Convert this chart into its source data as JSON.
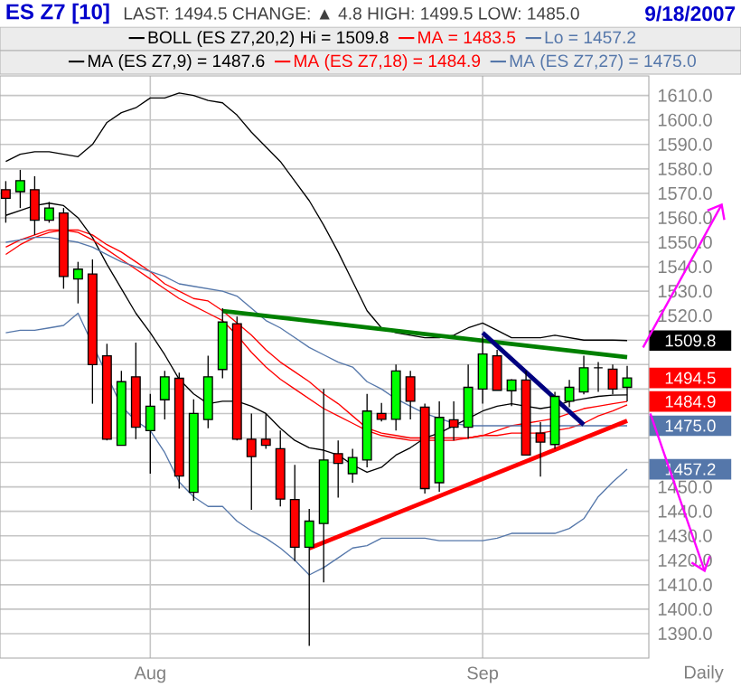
{
  "chart_data": {
    "type": "candlestick",
    "title": "ES Z7 [10]",
    "subtitle": "LAST: 1494.5 CHANGE: ▲ 4.8 HIGH: 1499.5 LOW: 1485.0",
    "annotations": [
      "9/18/2007",
      "Daily",
      "1494.5",
      "1509.8",
      "1484.9",
      "1475.0",
      "1457.2"
    ],
    "categories": [
      null,
      null,
      null,
      null,
      null,
      null,
      null,
      null,
      null,
      null,
      "Aug",
      null,
      null,
      null,
      null,
      null,
      null,
      null,
      null,
      null,
      null,
      null,
      null,
      null,
      null,
      null,
      null,
      null,
      null,
      null,
      null,
      null,
      null,
      "Sep",
      null,
      null,
      null,
      null,
      null,
      null,
      null,
      null,
      null,
      null
    ],
    "ohlc": [
      [
        1571.5,
        1575,
        1558,
        1568
      ],
      [
        1570.7,
        1579.6,
        1564,
        1575.2
      ],
      [
        1571.5,
        1577,
        1553,
        1559
      ],
      [
        1559,
        1566.5,
        1558,
        1564
      ],
      [
        1562,
        1564,
        1531,
        1536
      ],
      [
        1535,
        1542,
        1525,
        1539
      ],
      [
        1537,
        1543,
        1484,
        1500
      ],
      [
        1503.6,
        1508.5,
        1469,
        1469.5
      ],
      [
        1467,
        1497.4,
        1467,
        1493
      ],
      [
        1495,
        1509,
        1469.5,
        1474.4
      ],
      [
        1473,
        1488,
        1455.4,
        1483
      ],
      [
        1485.6,
        1497.4,
        1477.6,
        1495
      ],
      [
        1494.4,
        1496.7,
        1449.3,
        1454.4
      ],
      [
        1447.8,
        1485.8,
        1444.3,
        1480
      ],
      [
        1477.5,
        1503.6,
        1474,
        1495
      ],
      [
        1498,
        1523,
        1494.4,
        1517.4
      ],
      [
        1516.7,
        1519.6,
        1469,
        1469.5
      ],
      [
        1469.5,
        1480,
        1440.6,
        1462.4
      ],
      [
        1469.5,
        1480,
        1465.6,
        1467
      ],
      [
        1465.6,
        1473,
        1442,
        1445
      ],
      [
        1444.8,
        1459,
        1419.6,
        1425.3
      ],
      [
        1425.3,
        1441,
        1385,
        1436
      ],
      [
        1435,
        1490,
        1411,
        1461
      ],
      [
        1463.6,
        1469,
        1445.6,
        1459.6
      ],
      [
        1455.4,
        1465.6,
        1451.7,
        1462
      ],
      [
        1461,
        1488,
        1458,
        1481
      ],
      [
        1480,
        1484.3,
        1476.7,
        1477.6
      ],
      [
        1477.6,
        1500,
        1473,
        1497.4
      ],
      [
        1495,
        1497.4,
        1477.6,
        1485
      ],
      [
        1482.6,
        1484,
        1447.3,
        1449.3
      ],
      [
        1451.7,
        1485,
        1448,
        1478.4
      ],
      [
        1477.4,
        1485,
        1469,
        1474.4
      ],
      [
        1474.4,
        1500,
        1469.7,
        1490.7
      ],
      [
        1490,
        1511.5,
        1484,
        1504.3
      ],
      [
        1503.6,
        1506,
        1489.5,
        1489.5
      ],
      [
        1489.3,
        1494,
        1483,
        1493.7
      ],
      [
        1493.7,
        1497.4,
        1463,
        1463
      ],
      [
        1472,
        1476.5,
        1454.2,
        1468.3
      ],
      [
        1467.3,
        1488.8,
        1465.6,
        1487
      ],
      [
        1485,
        1493.7,
        1482.6,
        1490.7
      ],
      [
        1488.8,
        1503.6,
        1487.8,
        1498.7
      ],
      [
        1498.7,
        1501,
        1488.8,
        1498.7
      ],
      [
        1498.1,
        1500,
        1487.8,
        1490
      ],
      [
        1490.7,
        1499.5,
        1485,
        1494.5
      ]
    ],
    "colors": [
      "#ff0000",
      "#00ff00",
      "#ff0000",
      "#00ff00",
      "#ff0000",
      "#00ff00",
      "#ff0000",
      "#ff0000",
      "#00ff00",
      "#ff0000",
      "#00ff00",
      "#00ff00",
      "#ff0000",
      "#00ff00",
      "#00ff00",
      "#00ff00",
      "#ff0000",
      "#ff0000",
      "#ff0000",
      "#ff0000",
      "#ff0000",
      "#00ff00",
      "#00ff00",
      "#ff0000",
      "#00ff00",
      "#00ff00",
      "#ff0000",
      "#00ff00",
      "#ff0000",
      "#ff0000",
      "#00ff00",
      "#ff0000",
      "#00ff00",
      "#00ff00",
      "#ff0000",
      "#00ff00",
      "#ff0000",
      "#ff0000",
      "#00ff00",
      "#00ff00",
      "#00ff00",
      "#000000",
      "#ff0000",
      "#00ff00"
    ],
    "series": [
      {
        "type": "line",
        "name": "BOLL (ES Z7,20,2) Hi = 1509.8",
        "color": "#000000",
        "values": [
          1583,
          1586,
          1587,
          1587,
          1586,
          1585,
          1590,
          1599,
          1603,
          1605,
          1609,
          1609,
          1611,
          1610,
          1608,
          1607,
          1602,
          1595,
          1589,
          1583,
          1575,
          1567,
          1557,
          1546,
          1534,
          1522,
          1515,
          1513,
          1512,
          1511,
          1511,
          1512,
          1515,
          1517,
          1514,
          1511,
          1511,
          1511,
          1512,
          1511,
          1510,
          1510,
          1510,
          1509.8
        ]
      },
      {
        "type": "line",
        "name": "MA = 1483.5",
        "color": "#ff0000",
        "values": [
          1548,
          1551,
          1553,
          1555,
          1555,
          1555,
          1553,
          1549,
          1546,
          1542,
          1538,
          1533,
          1530,
          1527,
          1526,
          1522,
          1517,
          1512,
          1506,
          1501,
          1497,
          1493,
          1488,
          1484,
          1479,
          1474,
          1472,
          1471,
          1470,
          1470,
          1470,
          1470,
          1470,
          1471,
          1471,
          1472,
          1472,
          1472,
          1473,
          1474,
          1476,
          1479,
          1481,
          1483.5
        ]
      },
      {
        "type": "line",
        "name": "Lo = 1457.2",
        "color": "#5577aa",
        "values": [
          1513,
          1514,
          1514,
          1515,
          1516,
          1521,
          null,
          null,
          1483,
          1477,
          1473,
          1464,
          1452,
          1446,
          1442,
          1442,
          1436,
          1432,
          1429,
          1425,
          1420,
          1414,
          1417,
          1421,
          1425,
          1426,
          1429,
          1429,
          1429,
          1429,
          1428,
          1428,
          1428,
          1428,
          1429,
          1431,
          1431,
          1431,
          1431,
          1433,
          1437,
          1446,
          1452,
          1457.2
        ]
      },
      {
        "type": "line",
        "name": "MA (ES Z7,9) = 1487.6",
        "color": "#000000",
        "values": [
          1561,
          1563,
          1565,
          1566,
          1565,
          1560,
          1552,
          1541,
          1531,
          1521,
          1513,
          1504,
          1494,
          1488,
          1484,
          1485,
          1485,
          1483,
          1480,
          1474,
          1469,
          1466,
          1465,
          1463,
          1459,
          1456,
          1458,
          1463,
          1466,
          1470,
          1472,
          1475,
          1478,
          1481,
          1483,
          1484,
          1483,
          1482,
          1483,
          1485,
          1486,
          1487,
          1487.5,
          1487.6
        ]
      },
      {
        "type": "line",
        "name": "MA (ES Z7,18) = 1484.9",
        "color": "#ff0000",
        "values": [
          1545,
          1549,
          1552,
          1554,
          1555,
          1554,
          1551,
          1547,
          1543,
          1539,
          1535,
          1531,
          1527,
          1524,
          1521,
          1518,
          1512,
          1505,
          1499,
          1494,
          1490,
          1486,
          1482,
          1479,
          1476,
          1473,
          1471,
          1470,
          1469,
          1469,
          1469,
          1469,
          1470,
          1471,
          1473,
          1475,
          1476,
          1477,
          1478,
          1480,
          1482,
          1483,
          1484,
          1484.9
        ]
      },
      {
        "type": "line",
        "name": "MA (ES Z7,27) = 1475.0",
        "color": "#5577aa",
        "values": [
          1550,
          1551,
          1552,
          1552,
          1551,
          1550,
          1548,
          1545,
          1542,
          1540,
          1538,
          1536,
          1533,
          1532,
          1531,
          1530,
          1528,
          1523,
          1518,
          1515,
          1511,
          1507,
          1504,
          1501,
          1499,
          1493,
          1490,
          1486,
          1483,
          1480,
          1478,
          1476,
          1475,
          1475,
          1475,
          1475,
          1475,
          1475,
          1475,
          1475,
          1475,
          1475,
          1475,
          1475
        ]
      },
      {
        "type": "line",
        "color": "#008000",
        "values": [
          null,
          null,
          null,
          null,
          null,
          null,
          null,
          null,
          null,
          null,
          null,
          null,
          null,
          null,
          null,
          1521.9,
          null,
          null,
          null,
          null,
          null,
          null,
          null,
          null,
          null,
          null,
          null,
          null,
          null,
          null,
          null,
          null,
          null,
          null,
          null,
          null,
          null,
          null,
          null,
          null,
          null,
          null,
          null,
          1503.0
        ]
      },
      {
        "type": "line",
        "color": "#ff0000",
        "values": [
          null,
          null,
          null,
          null,
          null,
          null,
          null,
          null,
          null,
          null,
          null,
          null,
          null,
          null,
          null,
          null,
          null,
          null,
          null,
          null,
          null,
          1424.9,
          null,
          null,
          null,
          null,
          null,
          null,
          null,
          null,
          null,
          null,
          null,
          null,
          null,
          null,
          null,
          null,
          null,
          null,
          null,
          null,
          null,
          1477.0
        ]
      },
      {
        "type": "line",
        "color": "#000080",
        "values": [
          null,
          null,
          null,
          null,
          null,
          null,
          null,
          null,
          null,
          null,
          null,
          null,
          null,
          null,
          null,
          null,
          null,
          null,
          null,
          null,
          null,
          null,
          null,
          null,
          null,
          null,
          null,
          null,
          null,
          null,
          null,
          null,
          null,
          1513.0,
          null,
          null,
          null,
          null,
          null,
          null,
          1475.4,
          null,
          null,
          null
        ]
      }
    ],
    "ylim": [
      1380,
      1618
    ],
    "yticks": [
      {
        "value": 1390,
        "label": "1390.0"
      },
      {
        "value": 1400,
        "label": "1400.0"
      },
      {
        "value": 1410,
        "label": "1410.0"
      },
      {
        "value": 1420,
        "label": "1420.0"
      },
      {
        "value": 1430,
        "label": "1430.0"
      },
      {
        "value": 1440,
        "label": "1440.0"
      },
      {
        "value": 1450,
        "label": "1450.0"
      },
      {
        "value": 1460,
        "label": null
      },
      {
        "value": 1470,
        "label": null
      },
      {
        "value": 1480,
        "label": null
      },
      {
        "value": 1490,
        "label": null
      },
      {
        "value": 1500,
        "label": null
      },
      {
        "value": 1510,
        "label": null
      },
      {
        "value": 1520,
        "label": "1520.0"
      },
      {
        "value": 1530,
        "label": "1530.0"
      },
      {
        "value": 1540,
        "label": "1540.0"
      },
      {
        "value": 1550,
        "label": "1550.0"
      },
      {
        "value": 1560,
        "label": "1560.0"
      },
      {
        "value": 1570,
        "label": "1570.0"
      },
      {
        "value": 1580,
        "label": "1580.0"
      },
      {
        "value": 1590,
        "label": "1590.0"
      },
      {
        "value": 1600,
        "label": "1600.0"
      },
      {
        "value": 1610,
        "label": "1610.0"
      }
    ],
    "grid": true,
    "legend": "top"
  }
}
